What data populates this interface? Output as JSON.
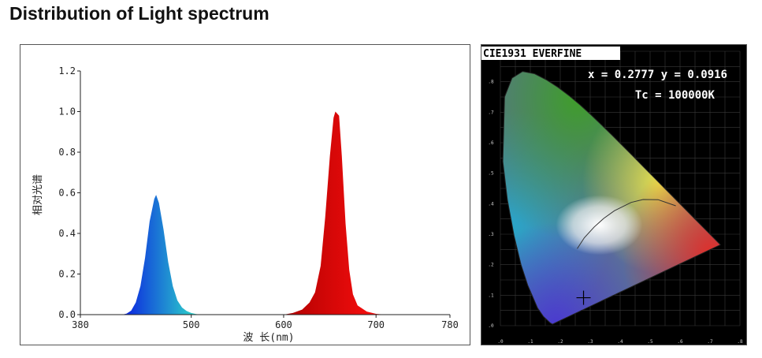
{
  "page": {
    "title": "Distribution of Light spectrum"
  },
  "chart_data": [
    {
      "type": "area",
      "title": "",
      "xlabel": "波 长(nm)",
      "ylabel": "相对光谱",
      "xlim": [
        380,
        780
      ],
      "ylim": [
        0,
        1.2
      ],
      "x_ticks": [
        "380",
        "500",
        "600",
        "700",
        "780"
      ],
      "y_ticks": [
        "0.0",
        "0.2",
        "0.4",
        "0.6",
        "0.8",
        "1.0",
        "1.2"
      ],
      "grid": false,
      "series": [
        {
          "color_start": "#0a1ee0",
          "color_end": "#2fe0c8",
          "x": [
            425,
            430,
            435,
            440,
            445,
            450,
            455,
            460,
            462,
            465,
            470,
            475,
            480,
            485,
            490,
            495,
            500,
            505,
            510
          ],
          "y": [
            0.0,
            0.005,
            0.02,
            0.06,
            0.14,
            0.28,
            0.46,
            0.57,
            0.59,
            0.55,
            0.42,
            0.26,
            0.14,
            0.07,
            0.035,
            0.018,
            0.008,
            0.003,
            0.0
          ]
        },
        {
          "color_start": "#b00000",
          "color_end": "#ff1010",
          "x": [
            600,
            610,
            620,
            628,
            634,
            640,
            645,
            650,
            654,
            656,
            660,
            663,
            667,
            671,
            675,
            680,
            690,
            700,
            710
          ],
          "y": [
            0.0,
            0.008,
            0.025,
            0.06,
            0.11,
            0.24,
            0.48,
            0.78,
            0.97,
            1.0,
            0.98,
            0.78,
            0.45,
            0.22,
            0.1,
            0.045,
            0.015,
            0.004,
            0.0
          ]
        }
      ]
    },
    {
      "type": "scatter",
      "title": "CIE1931 EVERFINE",
      "readout": [
        "x = 0.2777 y = 0.0916",
        "Tc = 100000K"
      ],
      "x": [
        0.2777
      ],
      "y": [
        0.0916
      ],
      "xlim": [
        0,
        0.8
      ],
      "ylim": [
        0,
        0.9
      ],
      "x_ticks": [
        ".0",
        ".1",
        ".2",
        ".3",
        ".4",
        ".5",
        ".6",
        ".7",
        ".8"
      ],
      "y_ticks": [
        ".0",
        ".1",
        ".2",
        ".3",
        ".4",
        ".5",
        ".6",
        ".7",
        ".8",
        ".9"
      ],
      "grid": true
    }
  ]
}
